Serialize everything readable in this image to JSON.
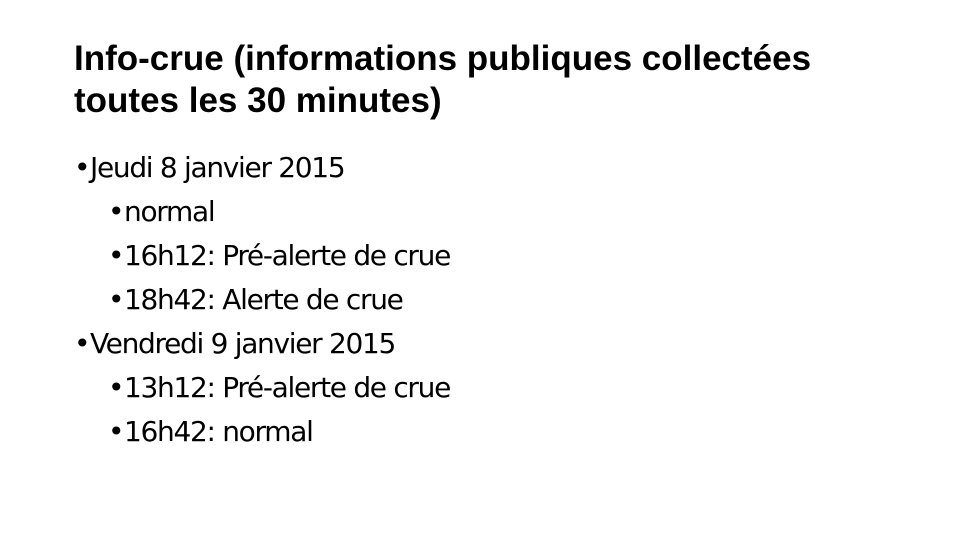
{
  "title": "Info-crue (informations publiques collectées toutes les 30 minutes)",
  "bullet": "•",
  "days": [
    {
      "label": "Jeudi 8 janvier 2015",
      "events": [
        "normal",
        "16h12: Pré-alerte de crue",
        "18h42: Alerte de crue"
      ]
    },
    {
      "label": "Vendredi 9 janvier 2015",
      "events": [
        "13h12: Pré-alerte de crue",
        "16h42: normal"
      ]
    }
  ]
}
